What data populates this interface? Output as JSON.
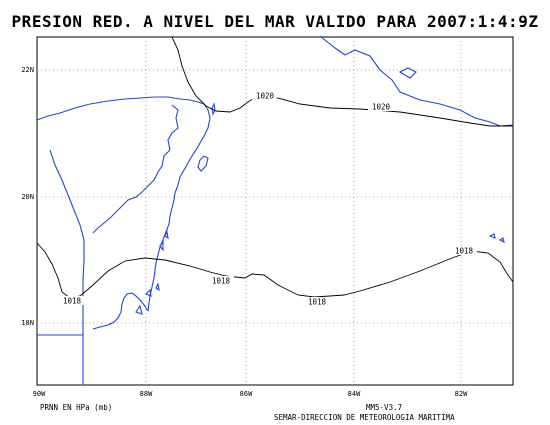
{
  "title": "PRESION RED. A NIVEL DEL MAR VALIDO PARA 2007:1:4:9Z",
  "units_label": "PRNN EN HPa (mb)",
  "model_version": "MM5-V3.7",
  "credit": "SEMAR-DIRECCION DE METEOROLOGIA MARITIMA",
  "axes": {
    "x_ticks": [
      "90W",
      "88W",
      "86W",
      "84W",
      "82W"
    ],
    "y_ticks": [
      "22N",
      "20N",
      "18N"
    ]
  },
  "contour_labels": [
    "1020",
    "1020",
    "1018",
    "1018",
    "1018",
    "1018"
  ],
  "colors": {
    "coastline": "#2244dd",
    "contour": "#000000",
    "grid": "#888888",
    "frame": "#000000"
  }
}
